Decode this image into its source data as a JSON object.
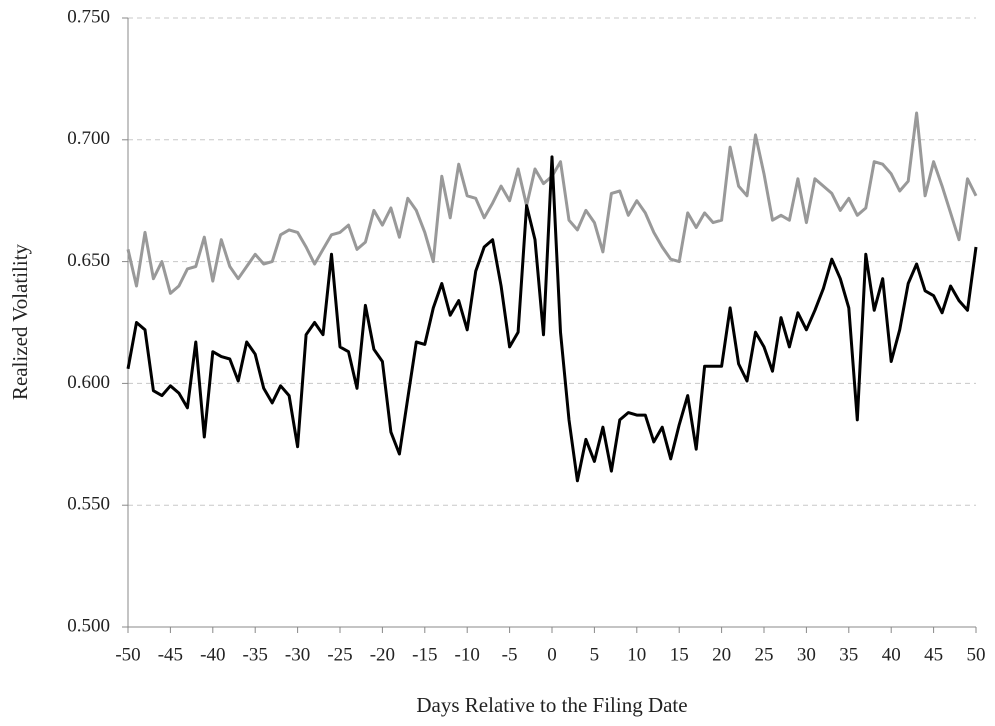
{
  "chart_data": {
    "type": "line",
    "xlabel": "Days Relative to the Filing Date",
    "ylabel": "Realized Volatility",
    "x": [
      -50,
      -49,
      -48,
      -47,
      -46,
      -45,
      -44,
      -43,
      -42,
      -41,
      -40,
      -39,
      -38,
      -37,
      -36,
      -35,
      -34,
      -33,
      -32,
      -31,
      -30,
      -29,
      -28,
      -27,
      -26,
      -25,
      -24,
      -23,
      -22,
      -21,
      -20,
      -19,
      -18,
      -17,
      -16,
      -15,
      -14,
      -13,
      -12,
      -11,
      -10,
      -9,
      -8,
      -7,
      -6,
      -5,
      -4,
      -3,
      -2,
      -1,
      0,
      1,
      2,
      3,
      4,
      5,
      6,
      7,
      8,
      9,
      10,
      11,
      12,
      13,
      14,
      15,
      16,
      17,
      18,
      19,
      20,
      21,
      22,
      23,
      24,
      25,
      26,
      27,
      28,
      29,
      30,
      31,
      32,
      33,
      34,
      35,
      36,
      37,
      38,
      39,
      40,
      41,
      42,
      43,
      44,
      45,
      46,
      47,
      48,
      49,
      50
    ],
    "series": [
      {
        "color": "#999999",
        "values": [
          0.655,
          0.64,
          0.662,
          0.643,
          0.65,
          0.637,
          0.64,
          0.647,
          0.648,
          0.66,
          0.642,
          0.659,
          0.648,
          0.643,
          0.648,
          0.653,
          0.649,
          0.65,
          0.661,
          0.663,
          0.662,
          0.656,
          0.649,
          0.655,
          0.661,
          0.662,
          0.665,
          0.655,
          0.658,
          0.671,
          0.665,
          0.672,
          0.66,
          0.676,
          0.671,
          0.662,
          0.65,
          0.685,
          0.668,
          0.69,
          0.677,
          0.676,
          0.668,
          0.674,
          0.681,
          0.675,
          0.688,
          0.673,
          0.688,
          0.682,
          0.685,
          0.691,
          0.667,
          0.663,
          0.671,
          0.666,
          0.654,
          0.678,
          0.679,
          0.669,
          0.675,
          0.67,
          0.662,
          0.656,
          0.651,
          0.65,
          0.67,
          0.664,
          0.67,
          0.666,
          0.667,
          0.697,
          0.681,
          0.677,
          0.702,
          0.686,
          0.667,
          0.669,
          0.667,
          0.684,
          0.666,
          0.684,
          0.681,
          0.678,
          0.671,
          0.676,
          0.669,
          0.672,
          0.691,
          0.69,
          0.686,
          0.679,
          0.683,
          0.711,
          0.677,
          0.691,
          0.681,
          0.67,
          0.659,
          0.684,
          0.677
        ]
      },
      {
        "color": "#000000",
        "values": [
          0.606,
          0.625,
          0.622,
          0.597,
          0.595,
          0.599,
          0.596,
          0.59,
          0.617,
          0.578,
          0.613,
          0.611,
          0.61,
          0.601,
          0.617,
          0.612,
          0.598,
          0.592,
          0.599,
          0.595,
          0.574,
          0.62,
          0.625,
          0.62,
          0.653,
          0.615,
          0.613,
          0.598,
          0.632,
          0.614,
          0.609,
          0.58,
          0.571,
          0.594,
          0.617,
          0.616,
          0.631,
          0.641,
          0.628,
          0.634,
          0.622,
          0.646,
          0.656,
          0.659,
          0.64,
          0.615,
          0.621,
          0.673,
          0.659,
          0.62,
          0.693,
          0.621,
          0.585,
          0.56,
          0.577,
          0.568,
          0.582,
          0.564,
          0.585,
          0.588,
          0.587,
          0.587,
          0.576,
          0.582,
          0.569,
          0.583,
          0.595,
          0.573,
          0.607,
          0.607,
          0.607,
          0.631,
          0.608,
          0.601,
          0.621,
          0.615,
          0.605,
          0.627,
          0.615,
          0.629,
          0.622,
          0.63,
          0.639,
          0.651,
          0.643,
          0.631,
          0.585,
          0.653,
          0.63,
          0.643,
          0.609,
          0.622,
          0.641,
          0.649,
          0.638,
          0.636,
          0.629,
          0.64,
          0.634,
          0.63,
          0.656
        ]
      }
    ],
    "xlim": [
      -50,
      50
    ],
    "xticks": [
      -50,
      -45,
      -40,
      -35,
      -30,
      -25,
      -20,
      -15,
      -10,
      -5,
      0,
      5,
      10,
      15,
      20,
      25,
      30,
      35,
      40,
      45,
      50
    ],
    "ylim": [
      0.5,
      0.75
    ],
    "yticks": [
      {
        "value": 0.5,
        "label": "0.500"
      },
      {
        "value": 0.55,
        "label": "0.550"
      },
      {
        "value": 0.6,
        "label": "0.600"
      },
      {
        "value": 0.65,
        "label": "0.650"
      },
      {
        "value": 0.7,
        "label": "0.700"
      },
      {
        "value": 0.75,
        "label": "0.750"
      }
    ],
    "grid": true
  }
}
